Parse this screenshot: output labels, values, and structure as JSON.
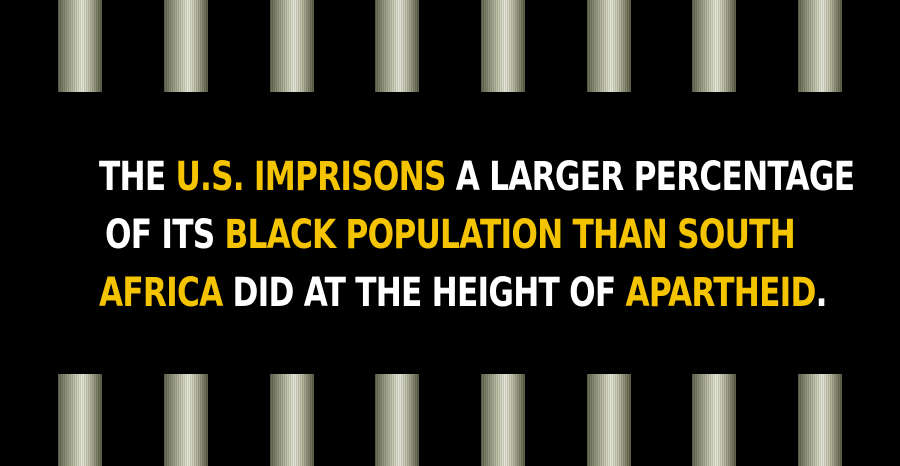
{
  "colors": {
    "background": "#000000",
    "text": "#ffffff",
    "highlight": "#f5c400"
  },
  "headline": {
    "lines": [
      [
        {
          "text": "THE ",
          "highlight": false
        },
        {
          "text": "U.S. IMPRISONS",
          "highlight": true
        },
        {
          "text": " A LARGER PERCENTAGE",
          "highlight": false
        }
      ],
      [
        {
          "text": "OF ITS ",
          "highlight": false
        },
        {
          "text": "BLACK POPULATION THAN SOUTH",
          "highlight": true
        }
      ],
      [
        {
          "text": "AFRICA",
          "highlight": true
        },
        {
          "text": " DID AT THE HEIGHT OF ",
          "highlight": false
        },
        {
          "text": "APARTHEID",
          "highlight": true
        },
        {
          "text": ".",
          "highlight": false
        }
      ]
    ]
  }
}
